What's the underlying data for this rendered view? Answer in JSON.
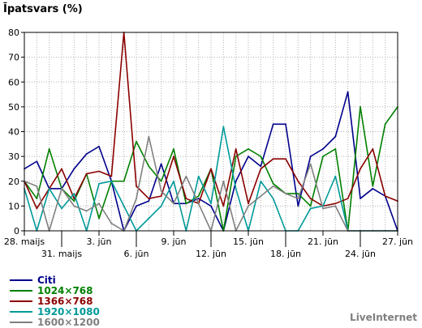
{
  "chart_data": {
    "type": "line",
    "title": "Īpatsvars (%)",
    "ylim": [
      0,
      80
    ],
    "y_ticks": [
      0,
      10,
      20,
      30,
      40,
      50,
      60,
      70,
      80
    ],
    "grid": true,
    "x": [
      "28.05",
      "29.05",
      "30.05",
      "31.05",
      "01.06",
      "02.06",
      "03.06",
      "04.06",
      "05.06",
      "06.06",
      "07.06",
      "08.06",
      "09.06",
      "10.06",
      "11.06",
      "12.06",
      "13.06",
      "14.06",
      "15.06",
      "16.06",
      "17.06",
      "18.06",
      "19.06",
      "20.06",
      "21.06",
      "22.06",
      "23.06",
      "24.06",
      "25.06",
      "26.06",
      "27.06"
    ],
    "x_tick_labels": [
      {
        "index": 0,
        "label": "28. maijs",
        "row": 1
      },
      {
        "index": 3,
        "label": "31. maijs",
        "row": 2
      },
      {
        "index": 6,
        "label": "3. jūn",
        "row": 1
      },
      {
        "index": 9,
        "label": "6. jūn",
        "row": 2
      },
      {
        "index": 12,
        "label": "9. jūn",
        "row": 1
      },
      {
        "index": 15,
        "label": "12. jūn",
        "row": 2
      },
      {
        "index": 18,
        "label": "15. jūn",
        "row": 1
      },
      {
        "index": 21,
        "label": "18. jūn",
        "row": 2
      },
      {
        "index": 24,
        "label": "21. jūn",
        "row": 1
      },
      {
        "index": 27,
        "label": "24. jūn",
        "row": 2
      },
      {
        "index": 30,
        "label": "27. jūn",
        "row": 1
      }
    ],
    "legend_position": "bottom-left",
    "series": [
      {
        "name": "Citi",
        "color": "#00008b",
        "values": [
          25,
          28,
          17,
          17,
          25,
          31,
          34,
          20,
          0,
          10,
          12,
          27,
          11,
          11,
          13,
          10,
          0,
          20,
          30,
          26,
          43,
          43,
          10,
          30,
          33,
          38,
          56,
          13,
          17,
          14,
          0
        ]
      },
      {
        "name": "1024×768",
        "color": "#008000",
        "values": [
          20,
          13,
          33,
          17,
          12,
          23,
          5,
          20,
          20,
          36,
          26,
          20,
          33,
          11,
          14,
          25,
          0,
          30,
          33,
          30,
          19,
          15,
          15,
          10,
          30,
          33,
          0,
          50,
          18,
          43,
          50
        ]
      },
      {
        "name": "1366×768",
        "color": "#8b0000",
        "values": [
          20,
          9,
          17,
          25,
          13,
          23,
          24,
          22,
          80,
          18,
          13,
          14,
          30,
          13,
          11,
          25,
          10,
          33,
          11,
          25,
          29,
          29,
          20,
          13,
          10,
          11,
          13,
          25,
          33,
          14,
          12
        ]
      },
      {
        "name": "1920×1080",
        "color": "#009999",
        "values": [
          17,
          0,
          17,
          9,
          15,
          0,
          19,
          20,
          10,
          0,
          5,
          10,
          20,
          0,
          22,
          11,
          42,
          17,
          0,
          20,
          13,
          0,
          0,
          9,
          10,
          22,
          0,
          0,
          0,
          0,
          0
        ]
      },
      {
        "name": "1600×1200",
        "color": "#808080",
        "values": [
          20,
          18,
          0,
          17,
          10,
          8,
          11,
          3,
          0,
          13,
          38,
          16,
          11,
          22,
          11,
          0,
          20,
          0,
          10,
          14,
          18,
          15,
          13,
          27,
          9,
          10,
          0,
          0,
          0,
          0,
          0
        ]
      }
    ]
  },
  "brand": "LiveInternet"
}
